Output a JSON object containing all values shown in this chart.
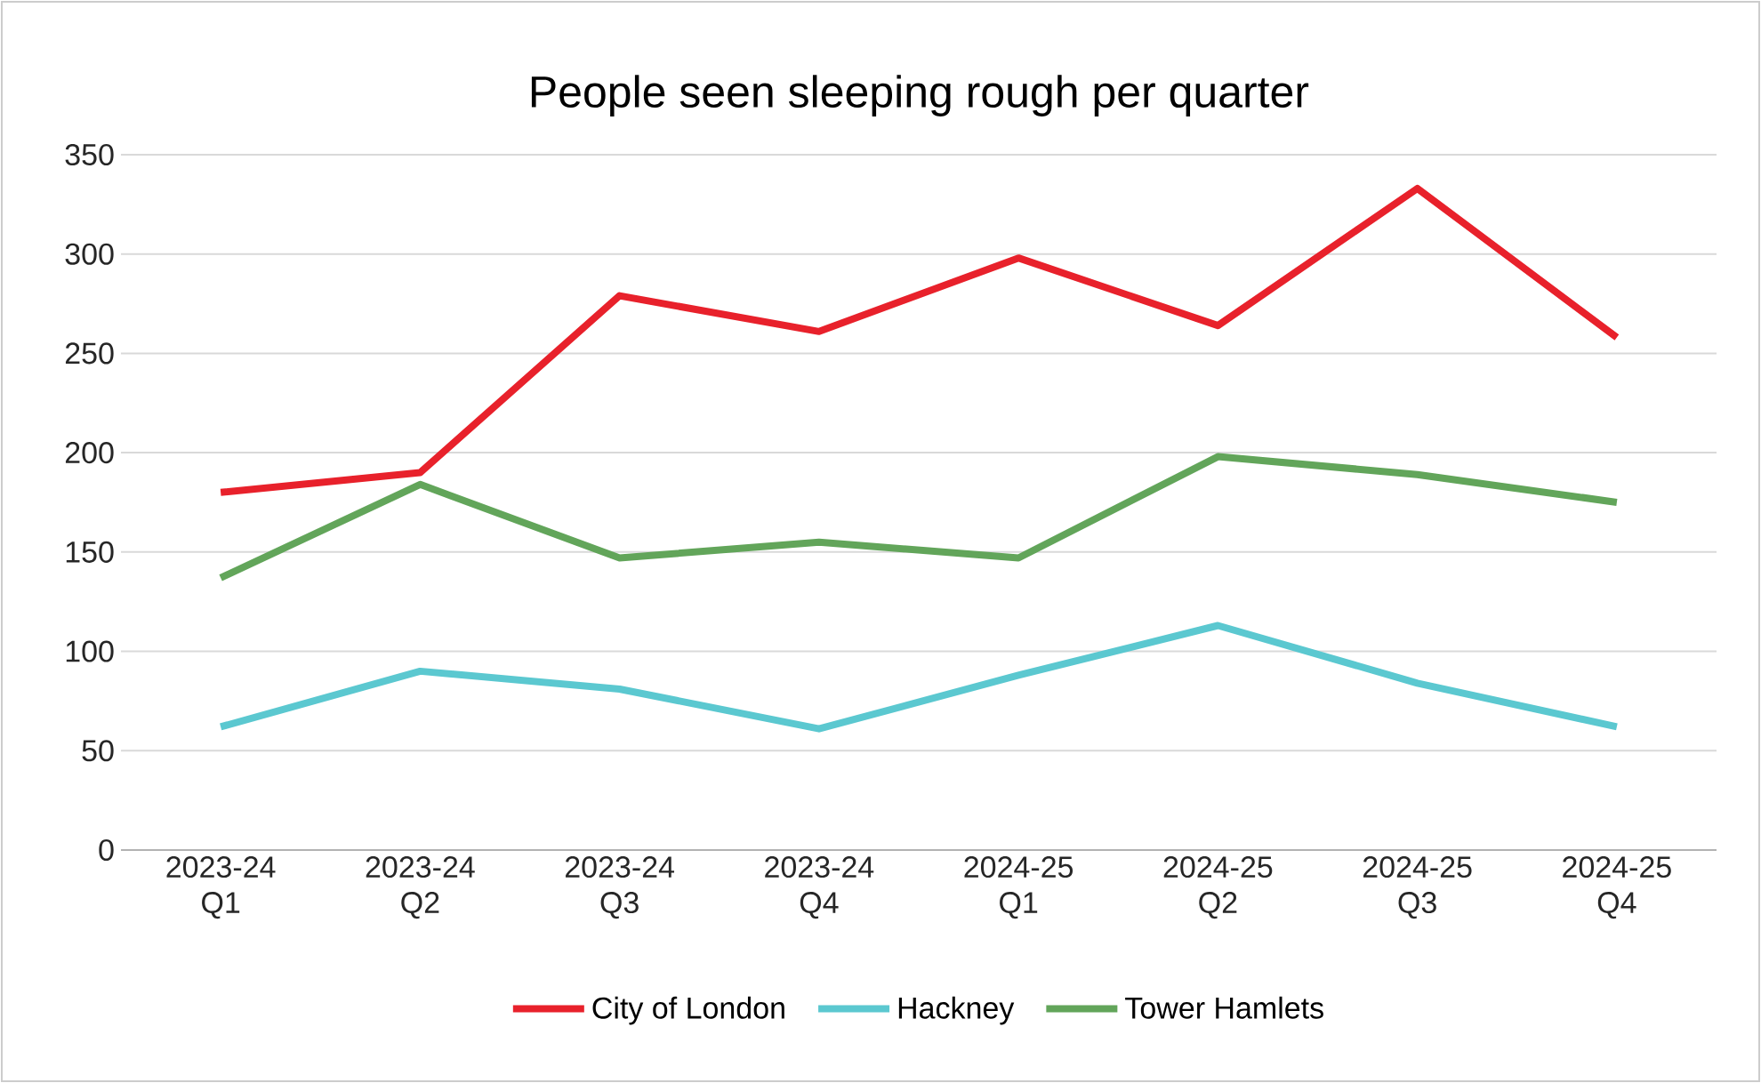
{
  "chart_data": {
    "type": "line",
    "title": "People seen sleeping rough per quarter",
    "categories": [
      "2023-24 Q1",
      "2023-24 Q2",
      "2023-24 Q3",
      "2023-24 Q4",
      "2024-25 Q1",
      "2024-25 Q2",
      "2024-25 Q3",
      "2024-25 Q4"
    ],
    "series": [
      {
        "name": "City of London",
        "color": "#e8212b",
        "values": [
          180,
          190,
          279,
          261,
          298,
          264,
          333,
          258
        ]
      },
      {
        "name": "Hackney",
        "color": "#5bc8d0",
        "values": [
          62,
          90,
          81,
          61,
          88,
          113,
          84,
          62
        ]
      },
      {
        "name": "Tower Hamlets",
        "color": "#62a55a",
        "values": [
          137,
          184,
          147,
          155,
          147,
          198,
          189,
          175
        ]
      }
    ],
    "ylim": [
      0,
      350
    ],
    "yticks": [
      0,
      50,
      100,
      150,
      200,
      250,
      300,
      350
    ],
    "grid": "y",
    "legend": "bottom",
    "marker": "none",
    "line_style": "solid"
  }
}
